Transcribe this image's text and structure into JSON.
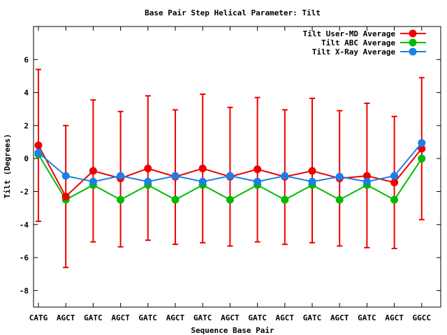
{
  "chart_data": {
    "type": "line",
    "title": "Base Pair Step Helical Parameter: Tilt",
    "xlabel": "Sequence Base Pair",
    "ylabel": "Tilt (Degrees)",
    "categories": [
      "CATG",
      "AGCT",
      "GATC",
      "AGCT",
      "GATC",
      "AGCT",
      "GATC",
      "AGCT",
      "GATC",
      "AGCT",
      "GATC",
      "AGCT",
      "GATC",
      "AGCT",
      "GGCC"
    ],
    "ylim": [
      -9,
      8
    ],
    "yticks": [
      -8,
      -6,
      -4,
      -2,
      0,
      2,
      4,
      6
    ],
    "grid": false,
    "legend_position": "top-right",
    "series": [
      {
        "name": "Tilt User-MD Average",
        "color": "#ee0000",
        "values": [
          0.8,
          -2.3,
          -0.75,
          -1.2,
          -0.6,
          -1.1,
          -0.6,
          -1.1,
          -0.65,
          -1.1,
          -0.75,
          -1.2,
          -1.05,
          -1.45,
          0.6
        ],
        "error_low": [
          -3.8,
          -6.6,
          -5.05,
          -5.35,
          -4.95,
          -5.2,
          -5.1,
          -5.3,
          -5.05,
          -5.2,
          -5.1,
          -5.3,
          -5.4,
          -5.45,
          -3.7
        ],
        "error_high": [
          5.4,
          2.0,
          3.55,
          2.85,
          3.8,
          2.95,
          3.9,
          3.1,
          3.7,
          2.95,
          3.65,
          2.9,
          3.35,
          2.55,
          4.9
        ]
      },
      {
        "name": "Tilt ABC Average",
        "color": "#00bb00",
        "values": [
          0.25,
          -2.5,
          -1.6,
          -2.5,
          -1.6,
          -2.5,
          -1.6,
          -2.5,
          -1.6,
          -2.5,
          -1.6,
          -2.5,
          -1.6,
          -2.5,
          0.0
        ]
      },
      {
        "name": "Tilt X-Ray Average",
        "color": "#1a7fe8",
        "values": [
          0.35,
          -1.05,
          -1.4,
          -1.05,
          -1.4,
          -1.05,
          -1.4,
          -1.05,
          -1.4,
          -1.05,
          -1.4,
          -1.1,
          -1.4,
          -1.05,
          0.95
        ]
      }
    ]
  }
}
